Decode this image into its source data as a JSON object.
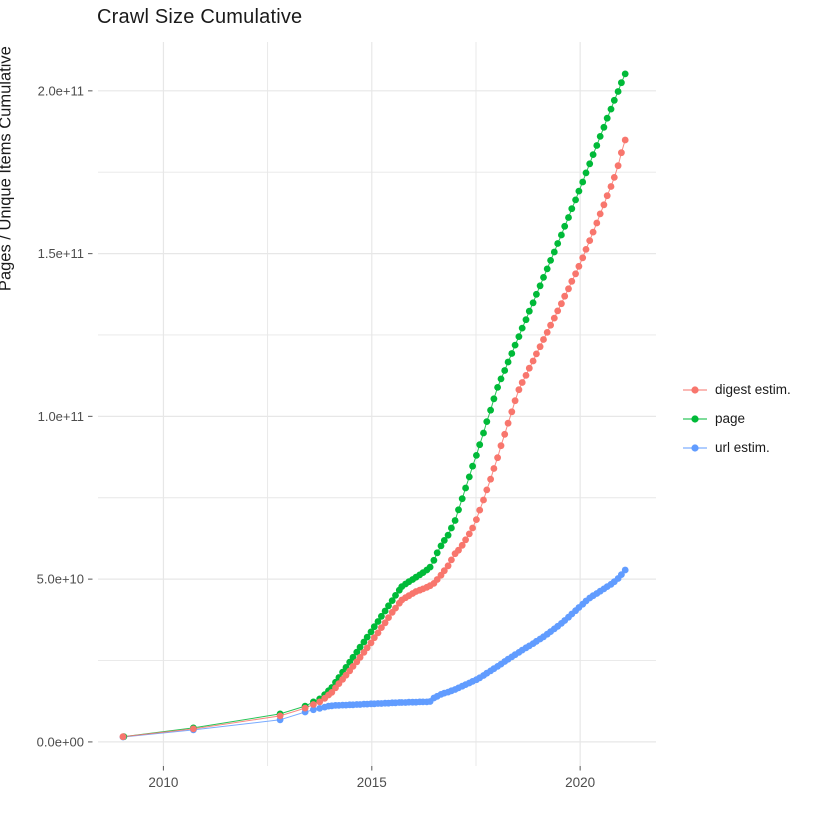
{
  "chart_data": {
    "type": "scatter",
    "title": "Crawl Size Cumulative",
    "xlabel": "",
    "ylabel": "Pages / Unique Items Cumulative",
    "legend_position": "right",
    "grid": true,
    "grid_color": "#e7e7e7",
    "tick_color": "#666666",
    "tick_label_color": "#4d4d4d",
    "background_color": "#ffffff",
    "x_domain": [
      2008.43,
      2021.82
    ],
    "y_domain_billions": [
      -7.4,
      215.0
    ],
    "x_ticks": {
      "major": [
        2010,
        2015,
        2020
      ],
      "minor": [
        2012.5,
        2017.5
      ],
      "labels": [
        "2010",
        "2015",
        "2020"
      ]
    },
    "y_ticks": {
      "major_billions": [
        0,
        50,
        100,
        150,
        200
      ],
      "minor_billions": [
        25,
        75,
        125,
        175
      ],
      "labels": [
        "0.0e+00",
        "5.0e+10",
        "1.0e+11",
        "1.5e+11",
        "2.0e+11"
      ]
    },
    "value_unit": "billions (1e9) of pages / unique items, cumulative",
    "series": [
      {
        "name": "digest estim.",
        "color": "#F8766D",
        "points": [
          [
            2009.03,
            1.6
          ],
          [
            2010.72,
            4.0
          ],
          [
            2012.8,
            8.0
          ],
          [
            2013.4,
            10.4
          ],
          [
            2013.6,
            11.5
          ],
          [
            2013.75,
            12.3
          ],
          [
            2013.87,
            13.4
          ],
          [
            2013.96,
            14.4
          ],
          [
            2014.04,
            15.2
          ],
          [
            2014.13,
            16.6
          ],
          [
            2014.21,
            17.9
          ],
          [
            2014.3,
            19.2
          ],
          [
            2014.38,
            20.5
          ],
          [
            2014.47,
            21.8
          ],
          [
            2014.55,
            23.2
          ],
          [
            2014.64,
            24.6
          ],
          [
            2014.72,
            26.0
          ],
          [
            2014.81,
            27.5
          ],
          [
            2014.89,
            28.9
          ],
          [
            2014.98,
            30.4
          ],
          [
            2015.06,
            32.0
          ],
          [
            2015.15,
            33.5
          ],
          [
            2015.23,
            35.1
          ],
          [
            2015.32,
            36.6
          ],
          [
            2015.4,
            38.2
          ],
          [
            2015.49,
            39.8
          ],
          [
            2015.57,
            41.1
          ],
          [
            2015.66,
            42.6
          ],
          [
            2015.72,
            43.6
          ],
          [
            2015.81,
            44.3
          ],
          [
            2015.89,
            44.9
          ],
          [
            2015.98,
            45.6
          ],
          [
            2016.06,
            46.2
          ],
          [
            2016.15,
            46.6
          ],
          [
            2016.23,
            47.0
          ],
          [
            2016.32,
            47.5
          ],
          [
            2016.4,
            48.0
          ],
          [
            2016.49,
            48.7
          ],
          [
            2016.57,
            49.9
          ],
          [
            2016.66,
            51.2
          ],
          [
            2016.74,
            52.6
          ],
          [
            2016.83,
            54.1
          ],
          [
            2016.91,
            55.9
          ],
          [
            2017.0,
            57.8
          ],
          [
            2017.08,
            58.9
          ],
          [
            2017.17,
            60.4
          ],
          [
            2017.25,
            62.1
          ],
          [
            2017.34,
            63.9
          ],
          [
            2017.42,
            65.7
          ],
          [
            2017.51,
            68.3
          ],
          [
            2017.59,
            71.2
          ],
          [
            2017.68,
            74.3
          ],
          [
            2017.76,
            77.4
          ],
          [
            2017.85,
            80.7
          ],
          [
            2017.93,
            84.0
          ],
          [
            2018.02,
            87.3
          ],
          [
            2018.1,
            91.0
          ],
          [
            2018.19,
            94.5
          ],
          [
            2018.27,
            97.9
          ],
          [
            2018.36,
            101.4
          ],
          [
            2018.44,
            104.8
          ],
          [
            2018.53,
            108.2
          ],
          [
            2018.61,
            110.4
          ],
          [
            2018.7,
            112.6
          ],
          [
            2018.78,
            114.8
          ],
          [
            2018.87,
            117.0
          ],
          [
            2018.95,
            119.2
          ],
          [
            2019.04,
            121.4
          ],
          [
            2019.12,
            123.6
          ],
          [
            2019.21,
            125.8
          ],
          [
            2019.29,
            128.0
          ],
          [
            2019.38,
            130.2
          ],
          [
            2019.46,
            132.4
          ],
          [
            2019.55,
            134.6
          ],
          [
            2019.63,
            136.9
          ],
          [
            2019.72,
            139.2
          ],
          [
            2019.8,
            141.5
          ],
          [
            2019.89,
            143.8
          ],
          [
            2019.97,
            146.1
          ],
          [
            2020.06,
            148.7
          ],
          [
            2020.14,
            151.3
          ],
          [
            2020.23,
            154.0
          ],
          [
            2020.31,
            156.6
          ],
          [
            2020.4,
            159.4
          ],
          [
            2020.48,
            162.2
          ],
          [
            2020.57,
            165.0
          ],
          [
            2020.65,
            167.8
          ],
          [
            2020.74,
            170.6
          ],
          [
            2020.82,
            173.4
          ],
          [
            2020.91,
            177.0
          ],
          [
            2020.99,
            181.0
          ],
          [
            2021.08,
            184.9
          ]
        ]
      },
      {
        "name": "page",
        "color": "#00BA38",
        "points": [
          [
            2009.05,
            1.6
          ],
          [
            2010.72,
            4.3
          ],
          [
            2012.8,
            8.6
          ],
          [
            2013.4,
            11.0
          ],
          [
            2013.6,
            12.3
          ],
          [
            2013.75,
            13.2
          ],
          [
            2013.87,
            14.5
          ],
          [
            2013.96,
            15.7
          ],
          [
            2014.04,
            16.7
          ],
          [
            2014.13,
            18.3
          ],
          [
            2014.21,
            19.8
          ],
          [
            2014.3,
            21.4
          ],
          [
            2014.38,
            22.9
          ],
          [
            2014.47,
            24.5
          ],
          [
            2014.55,
            26.0
          ],
          [
            2014.64,
            27.6
          ],
          [
            2014.72,
            29.1
          ],
          [
            2014.81,
            30.7
          ],
          [
            2014.89,
            32.2
          ],
          [
            2014.98,
            33.8
          ],
          [
            2015.06,
            35.4
          ],
          [
            2015.15,
            37.0
          ],
          [
            2015.23,
            38.6
          ],
          [
            2015.32,
            40.2
          ],
          [
            2015.4,
            41.8
          ],
          [
            2015.49,
            43.4
          ],
          [
            2015.57,
            45.0
          ],
          [
            2015.66,
            46.6
          ],
          [
            2015.72,
            47.7
          ],
          [
            2015.81,
            48.5
          ],
          [
            2015.89,
            49.2
          ],
          [
            2015.98,
            49.9
          ],
          [
            2016.06,
            50.6
          ],
          [
            2016.15,
            51.3
          ],
          [
            2016.23,
            52.0
          ],
          [
            2016.32,
            52.8
          ],
          [
            2016.4,
            53.7
          ],
          [
            2016.49,
            55.8
          ],
          [
            2016.57,
            58.1
          ],
          [
            2016.66,
            60.2
          ],
          [
            2016.74,
            61.9
          ],
          [
            2016.83,
            63.5
          ],
          [
            2016.91,
            65.7
          ],
          [
            2017.0,
            68.0
          ],
          [
            2017.08,
            71.3
          ],
          [
            2017.17,
            74.7
          ],
          [
            2017.25,
            78.0
          ],
          [
            2017.34,
            81.4
          ],
          [
            2017.42,
            84.7
          ],
          [
            2017.51,
            88.0
          ],
          [
            2017.59,
            91.3
          ],
          [
            2017.68,
            94.9
          ],
          [
            2017.76,
            98.4
          ],
          [
            2017.85,
            101.9
          ],
          [
            2017.93,
            105.4
          ],
          [
            2018.02,
            108.9
          ],
          [
            2018.1,
            111.5
          ],
          [
            2018.19,
            114.1
          ],
          [
            2018.27,
            116.7
          ],
          [
            2018.36,
            119.3
          ],
          [
            2018.44,
            121.9
          ],
          [
            2018.53,
            124.5
          ],
          [
            2018.61,
            127.1
          ],
          [
            2018.7,
            129.7
          ],
          [
            2018.78,
            132.3
          ],
          [
            2018.87,
            134.9
          ],
          [
            2018.95,
            137.5
          ],
          [
            2019.04,
            140.1
          ],
          [
            2019.12,
            142.7
          ],
          [
            2019.21,
            145.3
          ],
          [
            2019.29,
            147.9
          ],
          [
            2019.38,
            150.5
          ],
          [
            2019.46,
            153.1
          ],
          [
            2019.55,
            155.7
          ],
          [
            2019.63,
            158.4
          ],
          [
            2019.72,
            161.1
          ],
          [
            2019.8,
            163.8
          ],
          [
            2019.89,
            166.5
          ],
          [
            2019.97,
            169.2
          ],
          [
            2020.06,
            172.0
          ],
          [
            2020.14,
            174.8
          ],
          [
            2020.23,
            177.6
          ],
          [
            2020.31,
            180.4
          ],
          [
            2020.4,
            183.2
          ],
          [
            2020.48,
            186.0
          ],
          [
            2020.57,
            188.8
          ],
          [
            2020.65,
            191.6
          ],
          [
            2020.74,
            194.4
          ],
          [
            2020.82,
            197.1
          ],
          [
            2020.91,
            199.8
          ],
          [
            2020.99,
            202.5
          ],
          [
            2021.08,
            205.2
          ]
        ]
      },
      {
        "name": "url estim.",
        "color": "#619CFF",
        "points": [
          [
            2009.03,
            1.5
          ],
          [
            2010.72,
            3.7
          ],
          [
            2012.8,
            6.8
          ],
          [
            2013.4,
            9.2
          ],
          [
            2013.6,
            9.9
          ],
          [
            2013.75,
            10.3
          ],
          [
            2013.87,
            10.7
          ],
          [
            2013.96,
            11.0
          ],
          [
            2014.04,
            11.1
          ],
          [
            2014.13,
            11.2
          ],
          [
            2014.21,
            11.2
          ],
          [
            2014.3,
            11.3
          ],
          [
            2014.38,
            11.3
          ],
          [
            2014.47,
            11.4
          ],
          [
            2014.55,
            11.4
          ],
          [
            2014.64,
            11.5
          ],
          [
            2014.72,
            11.5
          ],
          [
            2014.81,
            11.6
          ],
          [
            2014.89,
            11.6
          ],
          [
            2014.98,
            11.7
          ],
          [
            2015.06,
            11.7
          ],
          [
            2015.15,
            11.8
          ],
          [
            2015.23,
            11.8
          ],
          [
            2015.32,
            11.9
          ],
          [
            2015.4,
            11.9
          ],
          [
            2015.49,
            12.0
          ],
          [
            2015.57,
            12.0
          ],
          [
            2015.66,
            12.1
          ],
          [
            2015.72,
            12.1
          ],
          [
            2015.81,
            12.1
          ],
          [
            2015.89,
            12.2
          ],
          [
            2015.98,
            12.2
          ],
          [
            2016.06,
            12.2
          ],
          [
            2016.15,
            12.3
          ],
          [
            2016.23,
            12.3
          ],
          [
            2016.32,
            12.3
          ],
          [
            2016.4,
            12.4
          ],
          [
            2016.49,
            13.5
          ],
          [
            2016.57,
            14.0
          ],
          [
            2016.66,
            14.6
          ],
          [
            2016.74,
            15.0
          ],
          [
            2016.83,
            15.3
          ],
          [
            2016.91,
            15.7
          ],
          [
            2017.0,
            16.1
          ],
          [
            2017.08,
            16.6
          ],
          [
            2017.17,
            17.1
          ],
          [
            2017.25,
            17.6
          ],
          [
            2017.34,
            18.1
          ],
          [
            2017.42,
            18.6
          ],
          [
            2017.51,
            19.1
          ],
          [
            2017.59,
            19.7
          ],
          [
            2017.68,
            20.4
          ],
          [
            2017.76,
            21.1
          ],
          [
            2017.85,
            21.8
          ],
          [
            2017.93,
            22.5
          ],
          [
            2018.02,
            23.2
          ],
          [
            2018.1,
            23.9
          ],
          [
            2018.19,
            24.7
          ],
          [
            2018.27,
            25.4
          ],
          [
            2018.36,
            26.1
          ],
          [
            2018.44,
            26.8
          ],
          [
            2018.53,
            27.5
          ],
          [
            2018.61,
            28.2
          ],
          [
            2018.7,
            28.9
          ],
          [
            2018.78,
            29.5
          ],
          [
            2018.87,
            30.2
          ],
          [
            2018.95,
            30.9
          ],
          [
            2019.04,
            31.6
          ],
          [
            2019.12,
            32.3
          ],
          [
            2019.21,
            33.1
          ],
          [
            2019.29,
            33.9
          ],
          [
            2019.38,
            34.7
          ],
          [
            2019.46,
            35.5
          ],
          [
            2019.55,
            36.4
          ],
          [
            2019.63,
            37.3
          ],
          [
            2019.72,
            38.3
          ],
          [
            2019.8,
            39.3
          ],
          [
            2019.89,
            40.3
          ],
          [
            2019.97,
            41.3
          ],
          [
            2020.06,
            42.3
          ],
          [
            2020.14,
            43.3
          ],
          [
            2020.23,
            44.2
          ],
          [
            2020.31,
            44.9
          ],
          [
            2020.4,
            45.6
          ],
          [
            2020.48,
            46.3
          ],
          [
            2020.57,
            47.0
          ],
          [
            2020.65,
            47.7
          ],
          [
            2020.74,
            48.4
          ],
          [
            2020.82,
            49.2
          ],
          [
            2020.91,
            50.2
          ],
          [
            2020.99,
            51.4
          ],
          [
            2021.08,
            52.8
          ]
        ]
      }
    ]
  }
}
